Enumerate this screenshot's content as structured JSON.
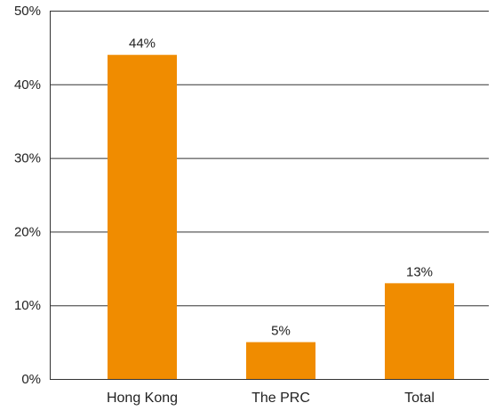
{
  "chart_data": {
    "type": "bar",
    "categories": [
      "Hong Kong",
      "The PRC",
      "Total"
    ],
    "values": [
      44,
      5,
      13
    ],
    "data_labels": [
      "44%",
      "5%",
      "13%"
    ],
    "y_ticks": [
      0,
      10,
      20,
      30,
      40,
      50
    ],
    "y_tick_labels": [
      "0%",
      "10%",
      "20%",
      "30%",
      "40%",
      "50%"
    ],
    "ylim": [
      0,
      50
    ],
    "grid": true,
    "legend": "none",
    "bar_color": "#F08C00"
  }
}
